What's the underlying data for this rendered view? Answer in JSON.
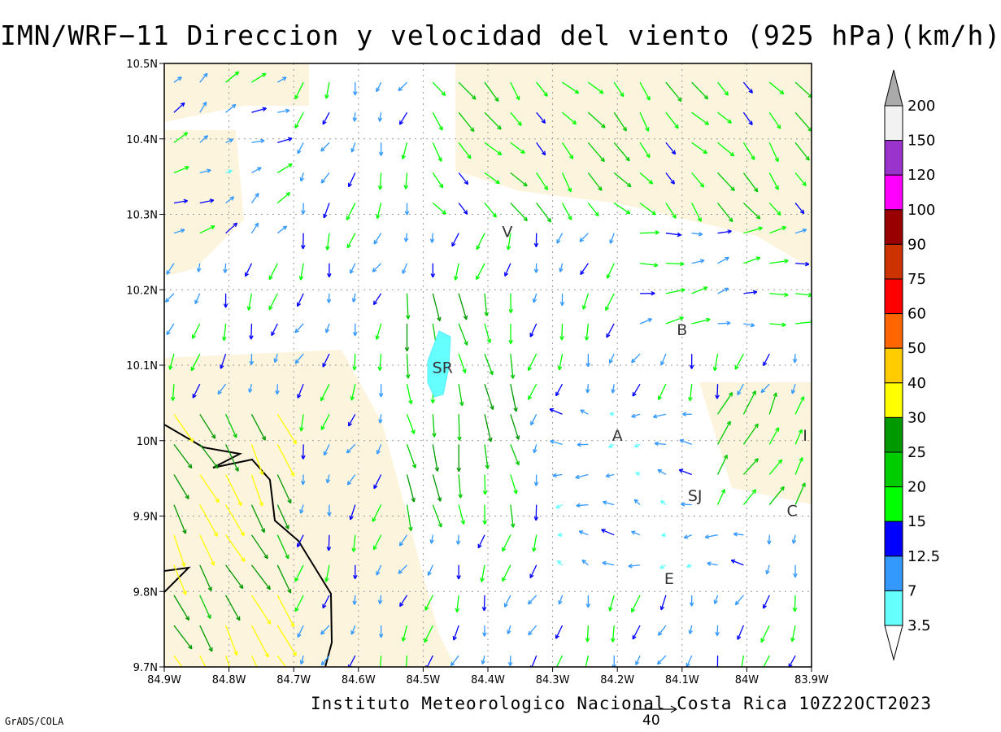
{
  "title": "IMN/WRF−11 Direccion y velocidad del viento (925 hPa)(km/h)",
  "footer": "Instituto Meteorologico Nacional Costa Rica 10Z22OCT2023",
  "grads_label": "GrADS/COLA",
  "reference_vector_label": "40",
  "axes": {
    "x_ticks": [
      "84.9W",
      "84.8W",
      "84.7W",
      "84.6W",
      "84.5W",
      "84.4W",
      "84.3W",
      "84.2W",
      "84.1W",
      "84W",
      "83.9W"
    ],
    "y_ticks": [
      "10.5N",
      "10.4N",
      "10.3N",
      "10.2N",
      "10.1N",
      "10N",
      "9.9N",
      "9.8N",
      "9.7N"
    ],
    "lon_range": [
      -84.9,
      -83.9
    ],
    "lat_range": [
      9.7,
      10.5
    ],
    "grid": "dotted"
  },
  "places": [
    {
      "label": "SR",
      "lon": -84.47,
      "lat": 10.09
    },
    {
      "label": "B",
      "lon": -84.1,
      "lat": 10.14
    },
    {
      "label": "A",
      "lon": -84.2,
      "lat": 10.0
    },
    {
      "label": "SJ",
      "lon": -84.08,
      "lat": 9.92
    },
    {
      "label": "C",
      "lon": -83.93,
      "lat": 9.9
    },
    {
      "label": "E",
      "lon": -84.12,
      "lat": 9.81
    },
    {
      "label": "V",
      "lon": -84.37,
      "lat": 10.27
    },
    {
      "label": "I",
      "lon": -83.91,
      "lat": 10.0
    }
  ],
  "colorbar": {
    "labels": [
      "3.5",
      "7",
      "12.5",
      "15",
      "20",
      "25",
      "30",
      "40",
      "50",
      "60",
      "75",
      "90",
      "100",
      "120",
      "150",
      "200"
    ],
    "colors": [
      "#66ffff",
      "#3399ff",
      "#0000ff",
      "#00ff00",
      "#00cc00",
      "#009900",
      "#ffff00",
      "#ffcc00",
      "#ff6600",
      "#ff0000",
      "#cc3300",
      "#990000",
      "#ff00ff",
      "#9933cc",
      "#f2f2f2",
      "#aaaaaa"
    ]
  },
  "colors": {
    "coastline": "#000000",
    "land_sea": "#fcf4dc",
    "grid": "#999999",
    "highlight_region": "#66ffff"
  }
}
